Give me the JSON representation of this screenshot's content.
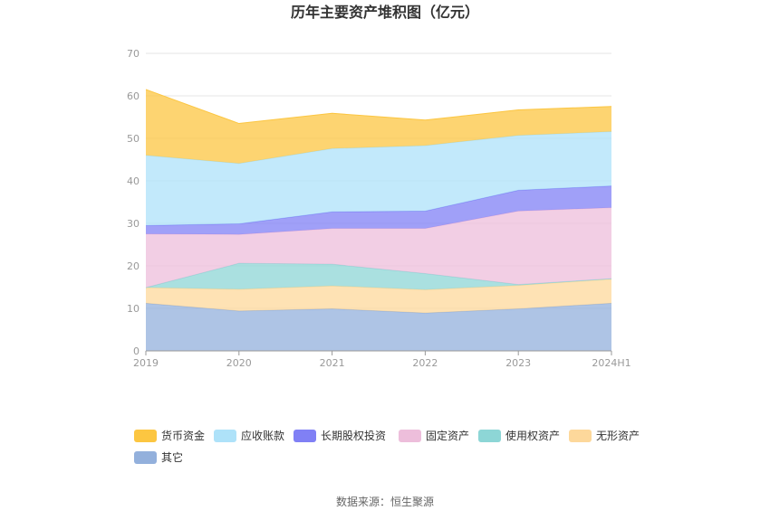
{
  "chart_data": {
    "type": "area",
    "stacked": true,
    "title": "历年主要资产堆积图（亿元）",
    "categories": [
      "2019",
      "2020",
      "2021",
      "2022",
      "2023",
      "2024H1"
    ],
    "ylim": [
      0,
      70
    ],
    "yticks": [
      0,
      10,
      20,
      30,
      40,
      50,
      60,
      70
    ],
    "grid": true,
    "legend_position": "bottom",
    "series": [
      {
        "name": "其它",
        "color": "#93b0dc",
        "values": [
          11.2,
          9.4,
          9.9,
          8.9,
          9.9,
          11.2
        ]
      },
      {
        "name": "无形资产",
        "color": "#fdd89b",
        "values": [
          3.7,
          5.1,
          5.4,
          5.5,
          5.5,
          5.7
        ]
      },
      {
        "name": "使用权资产",
        "color": "#8dd6d6",
        "values": [
          0,
          6.1,
          5.1,
          3.8,
          0.2,
          0.1
        ]
      },
      {
        "name": "固定资产",
        "color": "#edbedb",
        "values": [
          12.6,
          6.8,
          8.4,
          10.6,
          17.3,
          16.7
        ]
      },
      {
        "name": "长期股权投资",
        "color": "#8080f5",
        "values": [
          2.0,
          2.5,
          3.9,
          4.1,
          4.9,
          5.1
        ]
      },
      {
        "name": "应收账款",
        "color": "#aee2f9",
        "values": [
          16.5,
          14.2,
          14.9,
          15.4,
          12.9,
          12.8
        ]
      },
      {
        "name": "货币资金",
        "color": "#fcc641",
        "values": [
          15.5,
          9.4,
          8.3,
          6.0,
          6.0,
          5.9
        ]
      }
    ],
    "legend_order": [
      "货币资金",
      "应收账款",
      "长期股权投资",
      "固定资产",
      "使用权资产",
      "无形资产",
      "其它"
    ]
  },
  "source": "数据来源：恒生聚源"
}
